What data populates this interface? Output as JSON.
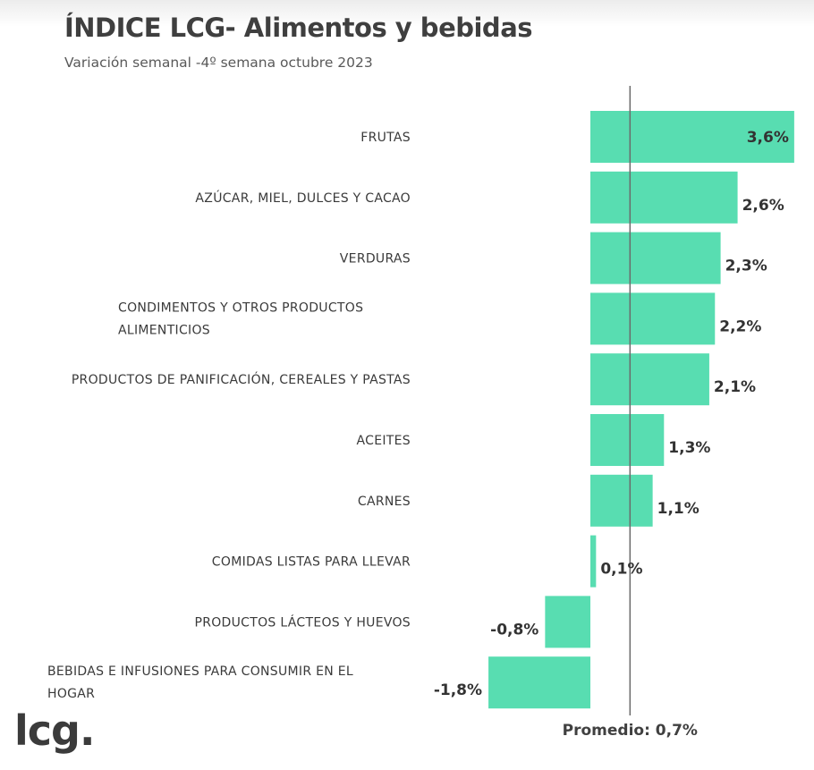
{
  "title": "ÍNDICE LCG- Alimentos y bebidas",
  "subtitle": "Variación semanal -4º semana octubre 2023",
  "logo": "lcg.",
  "colors": {
    "bar": "#58DDB1",
    "line": "#6b6b6b"
  },
  "chart_data": {
    "type": "bar",
    "orientation": "horizontal",
    "categories": [
      [
        "FRUTAS"
      ],
      [
        "AZÚCAR, MIEL, DULCES Y CACAO"
      ],
      [
        "VERDURAS"
      ],
      [
        "CONDIMENTOS Y OTROS PRODUCTOS",
        "ALIMENTICIOS"
      ],
      [
        "PRODUCTOS DE PANIFICACIÓN, CEREALES Y PASTAS"
      ],
      [
        "ACEITES"
      ],
      [
        "CARNES"
      ],
      [
        "COMIDAS LISTAS PARA LLEVAR"
      ],
      [
        "PRODUCTOS LÁCTEOS Y HUEVOS"
      ],
      [
        "BEBIDAS E INFUSIONES PARA CONSUMIR EN EL",
        "HOGAR"
      ]
    ],
    "values": [
      3.6,
      2.6,
      2.3,
      2.2,
      2.1,
      1.3,
      1.1,
      0.1,
      -0.8,
      -1.8
    ],
    "value_labels": [
      "3,6%",
      "2,6%",
      "2,3%",
      "2,2%",
      "2,1%",
      "1,3%",
      "1,1%",
      "0,1%",
      "-0,8%",
      "-1,8%"
    ],
    "reference_line": {
      "value": 0.7,
      "label": "Promedio: 0,7%"
    },
    "unit": "%",
    "grid": false,
    "legend": "none"
  }
}
